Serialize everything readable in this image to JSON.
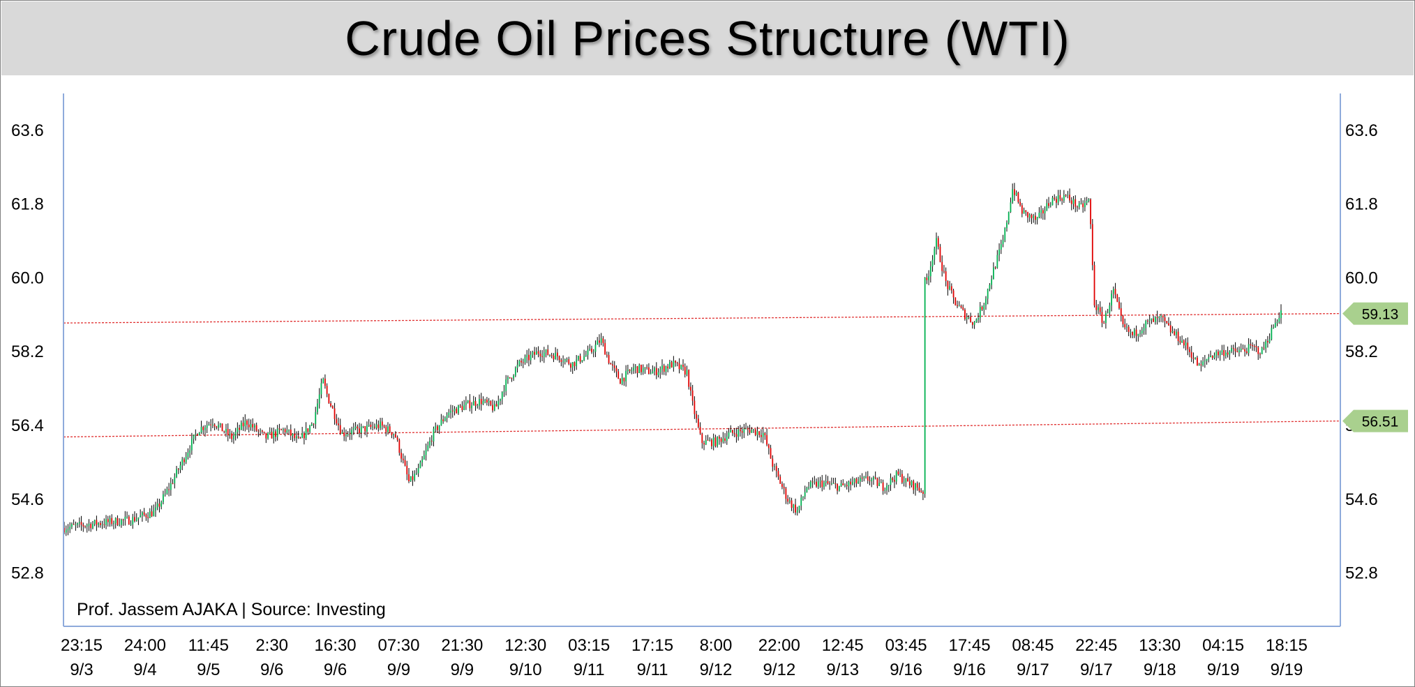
{
  "chart_data": {
    "type": "candlestick",
    "title": "Crude Oil Prices Structure (WTI)",
    "annotation": "Prof. Jassem AJAKA | Source: Investing",
    "ylim": [
      51.5,
      64.5
    ],
    "y_ticks": [
      "63.6",
      "61.8",
      "60.0",
      "58.2",
      "56.4",
      "54.6",
      "52.8"
    ],
    "y_tick_values": [
      63.6,
      61.8,
      60.0,
      58.2,
      56.4,
      54.6,
      52.8
    ],
    "x_ticks": [
      [
        "23:15",
        "9/3"
      ],
      [
        "24:00",
        "9/4"
      ],
      [
        "11:45",
        "9/5"
      ],
      [
        "2:30",
        "9/6"
      ],
      [
        "16:30",
        "9/6"
      ],
      [
        "07:30",
        "9/9"
      ],
      [
        "21:30",
        "9/9"
      ],
      [
        "12:30",
        "9/10"
      ],
      [
        "03:15",
        "9/11"
      ],
      [
        "17:15",
        "9/11"
      ],
      [
        "8:00",
        "9/12"
      ],
      [
        "22:00",
        "9/12"
      ],
      [
        "12:45",
        "9/13"
      ],
      [
        "03:45",
        "9/16"
      ],
      [
        "17:45",
        "9/16"
      ],
      [
        "08:45",
        "9/17"
      ],
      [
        "22:45",
        "9/17"
      ],
      [
        "13:30",
        "9/18"
      ],
      [
        "04:15",
        "9/19"
      ],
      [
        "18:15",
        "9/19"
      ]
    ],
    "levels": [
      {
        "label": "59.13",
        "start": 58.9,
        "end": 59.13,
        "color": "#e03030",
        "badge": "#a9d08e"
      },
      {
        "label": "56.51",
        "start": 56.12,
        "end": 56.51,
        "color": "#e03030",
        "badge": "#a9d08e"
      }
    ],
    "colors": {
      "up": "#00b050",
      "down": "#e00000",
      "wick": "#000000",
      "axis": "#8eaadb"
    },
    "price_path": [
      [
        0,
        53.9
      ],
      [
        6,
        54.0
      ],
      [
        14,
        54.1
      ],
      [
        19,
        54.3
      ],
      [
        22,
        54.9
      ],
      [
        25,
        55.6
      ],
      [
        28,
        56.3
      ],
      [
        31,
        56.5
      ],
      [
        35,
        56.1
      ],
      [
        38,
        56.5
      ],
      [
        42,
        56.1
      ],
      [
        46,
        56.3
      ],
      [
        49,
        56.0
      ],
      [
        52,
        56.5
      ],
      [
        54,
        57.5
      ],
      [
        55,
        57.1
      ],
      [
        58,
        56.2
      ],
      [
        62,
        56.3
      ],
      [
        66,
        56.4
      ],
      [
        69,
        56.2
      ],
      [
        72,
        55.0
      ],
      [
        74,
        55.3
      ],
      [
        77,
        56.2
      ],
      [
        80,
        56.7
      ],
      [
        84,
        56.9
      ],
      [
        87,
        57.0
      ],
      [
        90,
        56.8
      ],
      [
        92,
        57.4
      ],
      [
        95,
        57.9
      ],
      [
        99,
        58.2
      ],
      [
        103,
        58.1
      ],
      [
        106,
        57.9
      ],
      [
        110,
        58.2
      ],
      [
        112,
        58.5
      ],
      [
        114,
        57.9
      ],
      [
        116,
        57.5
      ],
      [
        119,
        57.8
      ],
      [
        123,
        57.7
      ],
      [
        127,
        57.9
      ],
      [
        130,
        57.7
      ],
      [
        131,
        57.0
      ],
      [
        133,
        56.0
      ],
      [
        136,
        56.0
      ],
      [
        139,
        56.2
      ],
      [
        143,
        56.3
      ],
      [
        146,
        56.2
      ],
      [
        148,
        55.4
      ],
      [
        151,
        54.6
      ],
      [
        153,
        54.3
      ],
      [
        155,
        54.9
      ],
      [
        158,
        55.0
      ],
      [
        162,
        54.9
      ],
      [
        165,
        55.0
      ],
      [
        168,
        55.1
      ],
      [
        171,
        54.9
      ],
      [
        174,
        55.2
      ],
      [
        176,
        55.0
      ],
      [
        178,
        54.9
      ],
      [
        179,
        54.8
      ],
      [
        180,
        59.9
      ],
      [
        182,
        60.9
      ],
      [
        184,
        59.9
      ],
      [
        186,
        59.4
      ],
      [
        188,
        59.1
      ],
      [
        190,
        58.9
      ],
      [
        192,
        59.4
      ],
      [
        194,
        60.2
      ],
      [
        196,
        60.9
      ],
      [
        198,
        62.2
      ],
      [
        200,
        61.6
      ],
      [
        203,
        61.4
      ],
      [
        206,
        61.9
      ],
      [
        209,
        62.0
      ],
      [
        212,
        61.7
      ],
      [
        214,
        61.9
      ],
      [
        215,
        59.4
      ],
      [
        217,
        58.9
      ],
      [
        219,
        59.7
      ],
      [
        221,
        58.8
      ],
      [
        223,
        58.6
      ],
      [
        226,
        58.9
      ],
      [
        229,
        59.0
      ],
      [
        231,
        58.7
      ],
      [
        233,
        58.5
      ],
      [
        235,
        58.2
      ],
      [
        237,
        57.8
      ],
      [
        239,
        58.1
      ],
      [
        242,
        58.2
      ],
      [
        245,
        58.2
      ],
      [
        248,
        58.3
      ],
      [
        250,
        58.2
      ],
      [
        252,
        58.7
      ],
      [
        254,
        59.2
      ]
    ]
  }
}
